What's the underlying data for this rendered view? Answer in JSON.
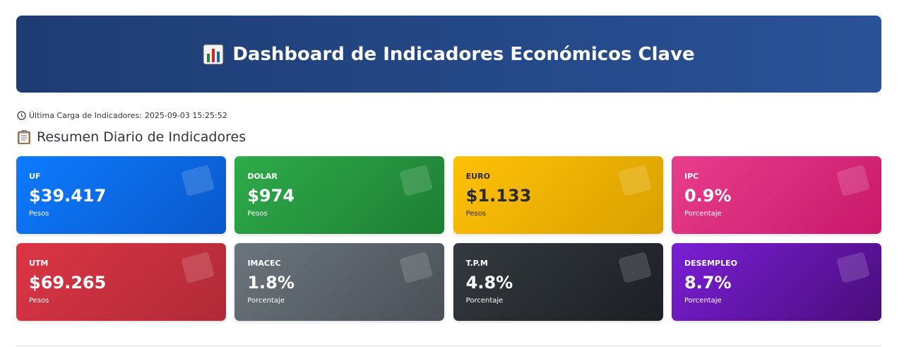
{
  "header": {
    "title": "Dashboard de Indicadores Económicos Clave"
  },
  "last_load": {
    "label": "Última Carga de Indicadores:",
    "timestamp": "2025-09-03 15:25:52"
  },
  "section": {
    "title": "Resumen Diario de Indicadores"
  },
  "cards": [
    {
      "label": "UF",
      "value": "$39.417",
      "unit": "Pesos"
    },
    {
      "label": "DOLAR",
      "value": "$974",
      "unit": "Pesos"
    },
    {
      "label": "EURO",
      "value": "$1.133",
      "unit": "Pesos"
    },
    {
      "label": "IPC",
      "value": "0.9%",
      "unit": "Porcentaje"
    },
    {
      "label": "UTM",
      "value": "$69.265",
      "unit": "Pesos"
    },
    {
      "label": "IMACEC",
      "value": "1.8%",
      "unit": "Porcentaje"
    },
    {
      "label": "T.P.M",
      "value": "4.8%",
      "unit": "Porcentaje"
    },
    {
      "label": "DESEMPLEO",
      "value": "8.7%",
      "unit": "Porcentaje"
    }
  ]
}
